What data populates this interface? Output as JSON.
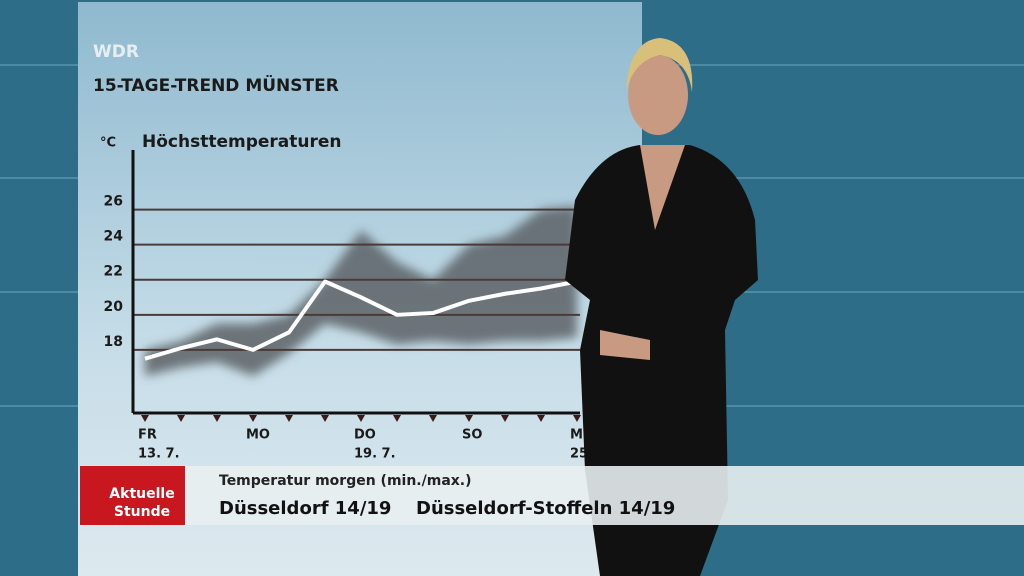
{
  "channel": "WDR",
  "chart_data": {
    "type": "line",
    "title": "15-TAGE-TREND MÜNSTER",
    "subtitle": "Höchsttemperaturen",
    "y_unit": "°C",
    "categories": [
      "FR",
      null,
      null,
      "MO",
      null,
      null,
      "DO",
      null,
      null,
      "SO",
      null,
      null,
      "MI",
      null,
      null
    ],
    "dates": [
      "13. 7.",
      null,
      null,
      null,
      null,
      null,
      "19. 7.",
      null,
      null,
      null,
      null,
      null,
      "25.",
      null,
      null
    ],
    "values": [
      17.5,
      18.1,
      18.6,
      18,
      19,
      21.9,
      21,
      20,
      20.1,
      20.8,
      21.2,
      21.5,
      21.9,
      null,
      null
    ],
    "color": "#ffffff",
    "band": {
      "color": "#555a5e",
      "low": [
        16.5,
        17,
        17.3,
        16.5,
        17.8,
        19.5,
        19,
        18.3,
        18.5,
        18.3,
        18.5,
        18.5,
        18.7,
        null,
        null
      ],
      "high": [
        18,
        18.5,
        19.5,
        19.5,
        20,
        22,
        24.8,
        23,
        22,
        24,
        24.5,
        26,
        26.2,
        null,
        null
      ]
    },
    "ylim": [
      14.4,
      29.4
    ],
    "yticks": [
      18,
      20,
      22,
      24,
      26
    ],
    "grid": true
  },
  "ticker": {
    "logo": [
      "Aktuelle",
      "Stunde"
    ],
    "heading": "Temperatur morgen (min./max.)",
    "items": [
      "Düsseldorf 14/19",
      "Düsseldorf-Stoffeln 14/19"
    ]
  }
}
